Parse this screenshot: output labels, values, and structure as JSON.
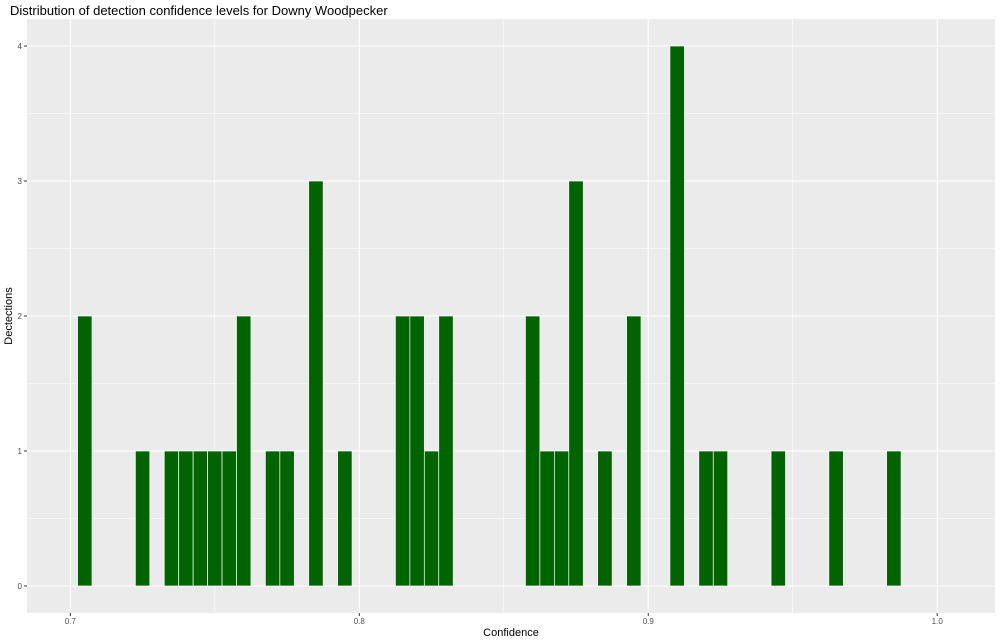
{
  "chart_data": {
    "type": "bar",
    "title": "Distribution of detection confidence levels for Downy Woodpecker",
    "xlabel": "Confidence",
    "ylabel": "Dectections",
    "xlim": [
      0.685,
      1.02
    ],
    "ylim": [
      -0.2,
      4.2
    ],
    "bin_width": 0.005,
    "x_ticks": [
      0.7,
      0.8,
      0.9,
      1.0
    ],
    "x_tick_labels": [
      "0.7",
      "0.8",
      "0.9",
      "1.0"
    ],
    "y_ticks": [
      0,
      1,
      2,
      3,
      4
    ],
    "y_tick_labels": [
      "0",
      "1",
      "2",
      "3",
      "4"
    ],
    "grid": true,
    "bar_color": "#006400",
    "panel_color": "#ebebeb",
    "bins": [
      {
        "x": 0.705,
        "count": 2
      },
      {
        "x": 0.725,
        "count": 1
      },
      {
        "x": 0.735,
        "count": 1
      },
      {
        "x": 0.74,
        "count": 1
      },
      {
        "x": 0.745,
        "count": 1
      },
      {
        "x": 0.75,
        "count": 1
      },
      {
        "x": 0.755,
        "count": 1
      },
      {
        "x": 0.76,
        "count": 2
      },
      {
        "x": 0.77,
        "count": 1
      },
      {
        "x": 0.775,
        "count": 1
      },
      {
        "x": 0.785,
        "count": 3
      },
      {
        "x": 0.795,
        "count": 1
      },
      {
        "x": 0.815,
        "count": 2
      },
      {
        "x": 0.82,
        "count": 2
      },
      {
        "x": 0.825,
        "count": 1
      },
      {
        "x": 0.83,
        "count": 2
      },
      {
        "x": 0.86,
        "count": 2
      },
      {
        "x": 0.865,
        "count": 1
      },
      {
        "x": 0.87,
        "count": 1
      },
      {
        "x": 0.875,
        "count": 3
      },
      {
        "x": 0.885,
        "count": 1
      },
      {
        "x": 0.895,
        "count": 2
      },
      {
        "x": 0.91,
        "count": 4
      },
      {
        "x": 0.92,
        "count": 1
      },
      {
        "x": 0.925,
        "count": 1
      },
      {
        "x": 0.945,
        "count": 1
      },
      {
        "x": 0.965,
        "count": 1
      },
      {
        "x": 0.985,
        "count": 1
      }
    ]
  }
}
